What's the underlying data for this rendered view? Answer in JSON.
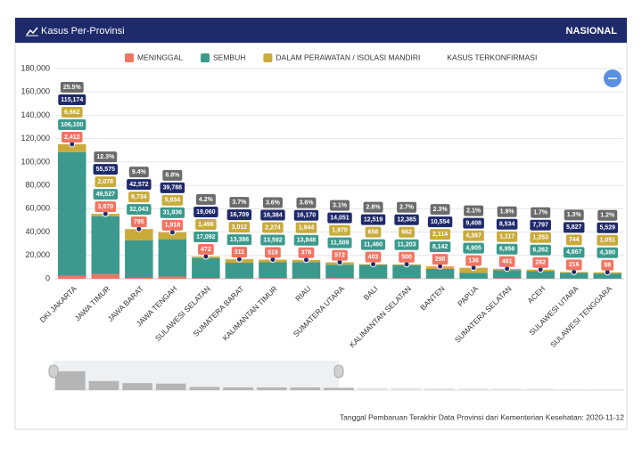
{
  "header": {
    "title": "Kasus Per-Provinsi",
    "scope": "NASIONAL"
  },
  "chart_data": {
    "type": "stacked_bar",
    "categories": [
      "DKI JAKARTA",
      "JAWA TIMUR",
      "JAWA BARAT",
      "JAWA TENGAH",
      "SULAWESI SELATAN",
      "SUMATERA BARAT",
      "KALIMANTAN TIMUR",
      "RIAU",
      "SUMATERA UTARA",
      "BALI",
      "KALIMANTAN SELATAN",
      "BANTEN",
      "PAPUA",
      "SUMATERA SELATAN",
      "ACEH",
      "SULAWESI UTARA",
      "SULAWESI TENGGARA"
    ],
    "series": [
      {
        "name": "MENINGGAL",
        "color": "#f07563",
        "values": [
          2412,
          3970,
          795,
          1918,
          472,
          311,
          518,
          378,
          572,
          403,
          500,
          298,
          136,
          461,
          282,
          216,
          88
        ],
        "value_labels": [
          "2,412",
          "3,970",
          "795",
          "1,918",
          "472",
          "311",
          "518",
          "378",
          "572",
          "403",
          "500",
          "298",
          "136",
          "461",
          "282",
          "216",
          "88"
        ]
      },
      {
        "name": "SEMBUH",
        "color": "#3b9a8d",
        "values": [
          106100,
          49527,
          32043,
          31936,
          17092,
          13386,
          13592,
          13848,
          11509,
          11460,
          11203,
          8142,
          4905,
          6956,
          6262,
          4867,
          4390
        ],
        "value_labels": [
          "106,100",
          "49,527",
          "32,043",
          "31,936",
          "17,092",
          "13,386",
          "13,592",
          "13,848",
          "11,509",
          "11,460",
          "11,203",
          "8,142",
          "4,905",
          "6,956",
          "6,262",
          "4,867",
          "4,390"
        ]
      },
      {
        "name": "DALAM PERAWATAN / ISOLASI MANDIRI",
        "color": "#c9ab3c",
        "values": [
          6662,
          2078,
          9734,
          5934,
          1496,
          3012,
          2274,
          1944,
          1970,
          656,
          662,
          2114,
          4367,
          1117,
          1253,
          744,
          1051
        ],
        "value_labels": [
          "6,662",
          "2,078",
          "9,734",
          "5,934",
          "1,496",
          "3,012",
          "2,274",
          "1,944",
          "1,970",
          "656",
          "662",
          "2,114",
          "4,367",
          "1,117",
          "1,253",
          "744",
          "1,051"
        ]
      }
    ],
    "total": {
      "name": "KASUS TERKONFIRMASI",
      "color": "#1f2a6b",
      "values": [
        115174,
        55575,
        42572,
        39788,
        19060,
        16709,
        16384,
        16170,
        14051,
        12519,
        12365,
        10554,
        9408,
        8534,
        7797,
        5827,
        5529
      ],
      "value_labels": [
        "115,174",
        "55,575",
        "42,572",
        "39,788",
        "19,060",
        "16,709",
        "16,384",
        "16,170",
        "14,051",
        "12,519",
        "12,365",
        "10,554",
        "9,408",
        "8,534",
        "7,797",
        "5,827",
        "5,529"
      ]
    },
    "shares": {
      "color": "#6b6b6b",
      "values": [
        25.5,
        12.3,
        9.4,
        8.8,
        4.2,
        3.7,
        3.6,
        3.6,
        3.1,
        2.8,
        2.7,
        2.3,
        2.1,
        1.9,
        1.7,
        1.3,
        1.2
      ],
      "value_labels": [
        "25.5%",
        "12.3%",
        "9.4%",
        "8.8%",
        "4.2%",
        "3.7%",
        "3.6%",
        "3.6%",
        "3.1%",
        "2.8%",
        "2.7%",
        "2.3%",
        "2.1%",
        "1.9%",
        "1.7%",
        "1.3%",
        "1.2%"
      ]
    },
    "ylim": [
      0,
      180000
    ],
    "yticks": [
      0,
      {
        "value": 20000,
        "label": "20,000"
      },
      {
        "value": 40000,
        "label": "40,000"
      },
      {
        "value": 60000,
        "label": "60,000"
      },
      {
        "value": 80000,
        "label": "80,000"
      },
      {
        "value": 100000,
        "label": "100,000"
      },
      {
        "value": 120000,
        "label": "120,000"
      },
      {
        "value": 140000,
        "label": "140,000"
      },
      {
        "value": 160000,
        "label": "160,000"
      },
      {
        "value": 180000,
        "label": "180,000"
      }
    ],
    "grid": true
  },
  "footer": {
    "note": "Tanggal Pembaruan Terakhir Data Provinsi dari Kementerian Kesehatan: 2020-11-12"
  }
}
